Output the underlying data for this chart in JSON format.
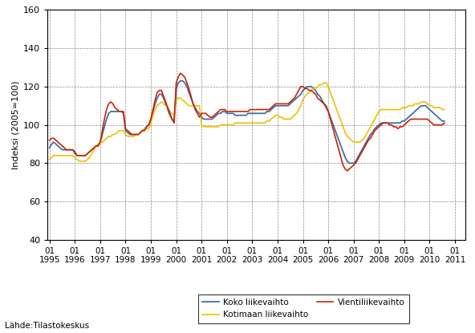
{
  "ylabel": "Indeksi (2005=100)",
  "source": "Lähde:Tilastokeskus",
  "ylim": [
    40,
    160
  ],
  "yticks": [
    40,
    60,
    80,
    100,
    120,
    140,
    160
  ],
  "line_koko_color": "#3465a4",
  "line_kotimaan_color": "#f0c000",
  "line_vienti_color": "#cc2200",
  "legend_koko": "Koko liikevaihto",
  "legend_kotimaan": "Kotimaan liikevaihto",
  "legend_vienti": "Vientiliikevaihto",
  "koko": [
    88,
    90,
    91,
    90,
    89,
    88,
    87,
    87,
    87,
    87,
    87,
    87,
    85,
    84,
    84,
    84,
    84,
    84,
    85,
    86,
    87,
    88,
    89,
    89,
    91,
    95,
    99,
    103,
    106,
    107,
    107,
    107,
    107,
    107,
    107,
    106,
    97,
    96,
    95,
    95,
    95,
    95,
    95,
    96,
    97,
    98,
    99,
    100,
    103,
    107,
    111,
    114,
    116,
    116,
    114,
    111,
    108,
    105,
    103,
    102,
    119,
    122,
    123,
    123,
    122,
    120,
    117,
    114,
    111,
    109,
    107,
    106,
    104,
    103,
    103,
    103,
    103,
    103,
    104,
    105,
    106,
    106,
    107,
    107,
    106,
    106,
    106,
    106,
    105,
    105,
    105,
    105,
    105,
    105,
    106,
    106,
    106,
    106,
    106,
    106,
    106,
    106,
    106,
    107,
    107,
    108,
    109,
    110,
    110,
    110,
    110,
    110,
    110,
    110,
    111,
    112,
    113,
    114,
    115,
    116,
    118,
    119,
    120,
    120,
    120,
    119,
    118,
    116,
    115,
    113,
    111,
    109,
    107,
    104,
    101,
    98,
    95,
    92,
    89,
    86,
    83,
    81,
    80,
    80,
    80,
    81,
    83,
    85,
    87,
    89,
    91,
    93,
    95,
    96,
    98,
    99,
    100,
    101,
    101,
    101,
    101,
    101,
    101,
    101,
    101,
    101,
    101,
    102,
    102,
    103,
    104,
    105,
    106,
    107,
    108,
    109,
    110,
    110,
    110,
    109,
    108,
    107,
    106,
    105,
    104,
    103,
    102,
    102
  ],
  "kotimaan": [
    82,
    83,
    84,
    84,
    84,
    84,
    84,
    84,
    84,
    84,
    84,
    84,
    83,
    82,
    81,
    81,
    81,
    81,
    82,
    83,
    85,
    87,
    89,
    90,
    91,
    91,
    92,
    93,
    94,
    94,
    95,
    95,
    96,
    97,
    97,
    97,
    95,
    94,
    94,
    94,
    94,
    95,
    95,
    96,
    97,
    98,
    98,
    98,
    101,
    105,
    108,
    110,
    111,
    112,
    111,
    110,
    109,
    107,
    106,
    105,
    113,
    114,
    114,
    113,
    112,
    111,
    110,
    110,
    110,
    110,
    110,
    110,
    100,
    99,
    99,
    99,
    99,
    99,
    99,
    99,
    99,
    100,
    100,
    100,
    100,
    100,
    100,
    100,
    101,
    101,
    101,
    101,
    101,
    101,
    101,
    101,
    101,
    101,
    101,
    101,
    101,
    101,
    101,
    102,
    102,
    103,
    104,
    105,
    105,
    104,
    104,
    103,
    103,
    103,
    103,
    104,
    105,
    106,
    108,
    110,
    113,
    115,
    116,
    117,
    118,
    119,
    119,
    120,
    121,
    121,
    122,
    122,
    120,
    117,
    114,
    111,
    108,
    105,
    102,
    99,
    96,
    94,
    93,
    92,
    91,
    91,
    91,
    91,
    92,
    93,
    95,
    97,
    99,
    101,
    103,
    105,
    107,
    108,
    108,
    108,
    108,
    108,
    108,
    108,
    108,
    108,
    108,
    109,
    109,
    109,
    110,
    110,
    110,
    111,
    111,
    111,
    112,
    112,
    112,
    111,
    110,
    110,
    109,
    109,
    109,
    109,
    108,
    108
  ],
  "vienti": [
    92,
    93,
    93,
    92,
    91,
    90,
    89,
    88,
    87,
    87,
    87,
    87,
    86,
    84,
    84,
    84,
    84,
    84,
    85,
    86,
    87,
    88,
    89,
    89,
    91,
    97,
    103,
    108,
    111,
    112,
    111,
    109,
    108,
    107,
    107,
    107,
    98,
    97,
    96,
    95,
    95,
    95,
    95,
    96,
    97,
    97,
    99,
    100,
    103,
    108,
    113,
    117,
    118,
    118,
    115,
    112,
    109,
    106,
    103,
    101,
    122,
    125,
    127,
    126,
    125,
    122,
    119,
    115,
    111,
    108,
    106,
    104,
    106,
    106,
    106,
    105,
    104,
    104,
    105,
    106,
    107,
    108,
    108,
    108,
    107,
    107,
    107,
    107,
    107,
    107,
    107,
    107,
    107,
    107,
    107,
    108,
    108,
    108,
    108,
    108,
    108,
    108,
    108,
    108,
    108,
    109,
    110,
    111,
    111,
    111,
    111,
    111,
    111,
    111,
    112,
    113,
    114,
    116,
    118,
    120,
    120,
    119,
    119,
    118,
    118,
    117,
    116,
    114,
    113,
    112,
    111,
    110,
    107,
    103,
    99,
    95,
    91,
    87,
    83,
    79,
    77,
    76,
    77,
    78,
    79,
    80,
    82,
    84,
    86,
    88,
    90,
    92,
    93,
    95,
    97,
    98,
    99,
    100,
    101,
    101,
    101,
    100,
    100,
    99,
    99,
    98,
    99,
    99,
    100,
    101,
    102,
    103,
    103,
    103,
    103,
    103,
    103,
    103,
    103,
    103,
    102,
    101,
    100,
    100,
    100,
    100,
    100,
    101
  ],
  "xmin": 1995.0,
  "xmax": 2011.417,
  "year_start": 1995,
  "year_end": 2011,
  "linewidth": 1.2
}
